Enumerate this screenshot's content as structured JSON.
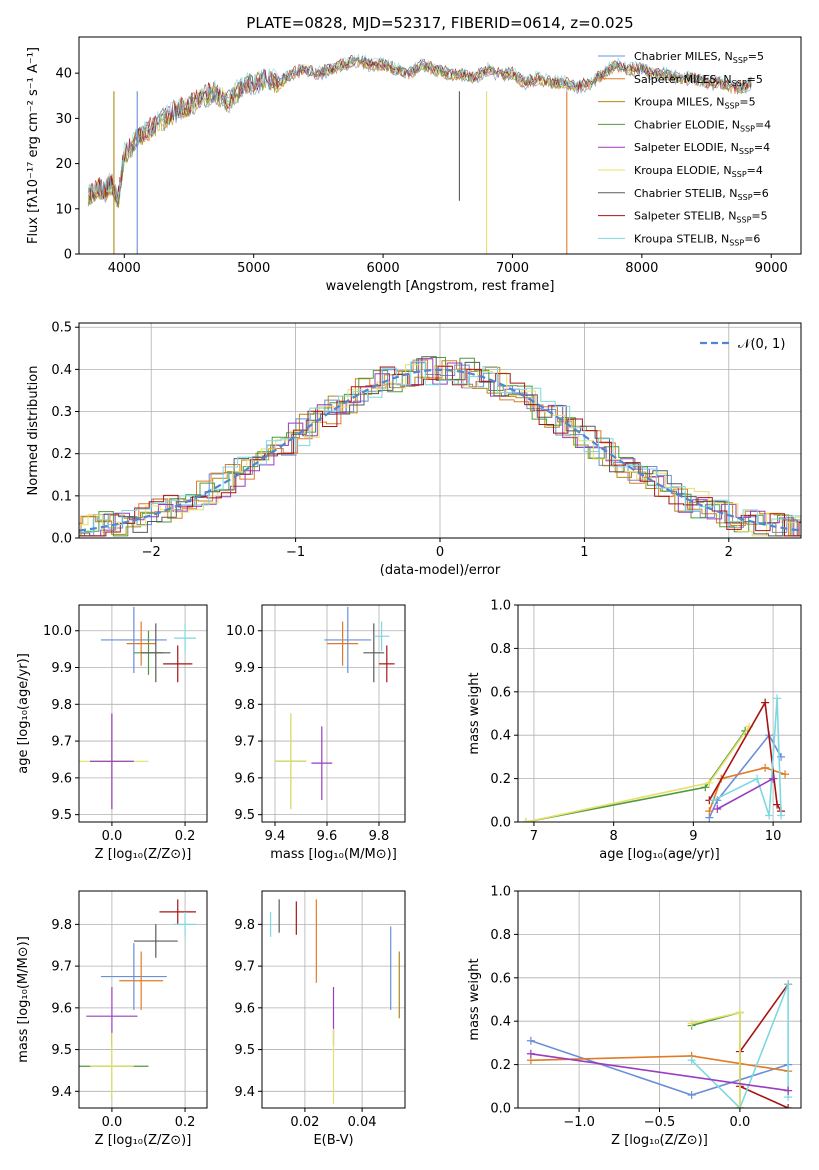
{
  "title": "PLATE=0828, MJD=52317, FIBERID=0614, z=0.025",
  "colors": [
    "#6a8fd8",
    "#e07c27",
    "#b08a1a",
    "#4f9a3c",
    "#9a3bc0",
    "#e6e06a",
    "#5a5a5a",
    "#a81414",
    "#7fd8e0"
  ],
  "models": [
    {
      "name": "Chabrier MILES, N",
      "sub": "SSP",
      "nssp": "=5",
      "color": "#6a8fd8"
    },
    {
      "name": "Salpeter MILES, N",
      "sub": "SSP",
      "nssp": "=5",
      "color": "#e07c27"
    },
    {
      "name": "Kroupa MILES, N",
      "sub": "SSP",
      "nssp": "=5",
      "color": "#b08a1a"
    },
    {
      "name": "Chabrier ELODIE, N",
      "sub": "SSP",
      "nssp": "=4",
      "color": "#4f9a3c"
    },
    {
      "name": "Salpeter ELODIE, N",
      "sub": "SSP",
      "nssp": "=4",
      "color": "#9a3bc0"
    },
    {
      "name": "Kroupa ELODIE, N",
      "sub": "SSP",
      "nssp": "=4",
      "color": "#e6e06a"
    },
    {
      "name": "Chabrier STELIB, N",
      "sub": "SSP",
      "nssp": "=6",
      "color": "#5a5a5a"
    },
    {
      "name": "Salpeter STELIB, N",
      "sub": "SSP",
      "nssp": "=5",
      "color": "#a81414"
    },
    {
      "name": "Kroupa STELIB, N",
      "sub": "SSP",
      "nssp": "=6",
      "color": "#7fd8e0"
    }
  ],
  "chart_data": [
    {
      "id": "spectrum",
      "type": "line",
      "xlabel": "wavelength [Angstrom, rest frame]",
      "ylabel": "Flux [fλ10⁻¹⁷ erg cm⁻² s⁻¹ A⁻¹]",
      "xlim": [
        3650,
        9230
      ],
      "ylim": [
        0,
        48
      ],
      "xticks": [
        4000,
        5000,
        6000,
        7000,
        8000,
        9000
      ],
      "yticks": [
        0,
        10,
        20,
        30,
        40
      ],
      "x": [
        3720,
        3800,
        3850,
        3900,
        3950,
        4000,
        4100,
        4200,
        4300,
        4400,
        4500,
        4600,
        4700,
        4800,
        4900,
        5000,
        5100,
        5200,
        5300,
        5400,
        5500,
        5600,
        5700,
        5800,
        5900,
        6000,
        6100,
        6200,
        6300,
        6400,
        6500,
        6600,
        6700,
        6800,
        6900,
        7000,
        7100,
        7200,
        7300,
        7400,
        7500,
        7600,
        7700,
        7800,
        7900,
        8000,
        8100,
        8200,
        8300,
        8400,
        8500,
        8600,
        8700,
        8800,
        8850
      ],
      "y": [
        13,
        15,
        14,
        16,
        12,
        22,
        26,
        28,
        30,
        32,
        33,
        35,
        36,
        34,
        37,
        38,
        39,
        38,
        40,
        41,
        40,
        41,
        42,
        43,
        42,
        42,
        41,
        40,
        42,
        41,
        40,
        40,
        39,
        41,
        40,
        40,
        38,
        39,
        38,
        38,
        37,
        38,
        40,
        42,
        41,
        41,
        40,
        40,
        39,
        39,
        38,
        38,
        37,
        37,
        38
      ],
      "dips": [
        {
          "x": 4100,
          "y": 0,
          "series": 0
        },
        {
          "x": 3920,
          "y": 0,
          "series": 2
        },
        {
          "x": 6800,
          "y": 0,
          "series": 5
        },
        {
          "x": 7420,
          "y": 0,
          "series": 1
        },
        {
          "x": 6590,
          "y": 12,
          "series": 6
        }
      ]
    },
    {
      "id": "histogram",
      "type": "bar",
      "xlabel": "(data-model)/error",
      "ylabel": "Normed distribution",
      "xlim": [
        -2.5,
        2.5
      ],
      "ylim": [
        0,
        0.51
      ],
      "xticks": [
        -2,
        -1,
        0,
        1,
        2
      ],
      "yticks": [
        0.0,
        0.1,
        0.2,
        0.3,
        0.4,
        0.5
      ],
      "legend": "𝒩(0, 1)",
      "gaussian": {
        "mu": 0,
        "sigma": 1
      }
    },
    {
      "id": "z-age",
      "type": "scatter",
      "xlabel": "Z [log₁₀(Z/Z⊙)]",
      "ylabel": "age  [log₁₀(age/yr)]",
      "xlim": [
        -0.09,
        0.26
      ],
      "ylim": [
        9.48,
        10.07
      ],
      "xticks": [
        0.0,
        0.2
      ],
      "yticks": [
        9.5,
        9.6,
        9.7,
        9.8,
        9.9,
        10.0
      ],
      "points": [
        {
          "x": 0.06,
          "y": 9.975,
          "xerr": 0.09,
          "yerr": 0.09,
          "series": 0
        },
        {
          "x": 0.08,
          "y": 9.965,
          "xerr": 0.04,
          "yerr": 0.06,
          "series": 1
        },
        {
          "x": 0.1,
          "y": 9.94,
          "xerr": 0.04,
          "yerr": 0.06,
          "series": 3
        },
        {
          "x": 0.18,
          "y": 9.91,
          "xerr": 0.04,
          "yerr": 0.05,
          "series": 7
        },
        {
          "x": 0.12,
          "y": 9.94,
          "xerr": 0.04,
          "yerr": 0.08,
          "series": 6
        },
        {
          "x": 0.2,
          "y": 9.98,
          "xerr": 0.03,
          "yerr": 0.04,
          "series": 8
        },
        {
          "x": 0.0,
          "y": 9.645,
          "xerr": 0.06,
          "yerr": 0.13,
          "series": 3
        },
        {
          "x": 0.0,
          "y": 9.645,
          "xerr": 0.1,
          "yerr": 0.13,
          "series": 5
        },
        {
          "x": 0.0,
          "y": 9.645,
          "xerr": 0.06,
          "yerr": 0.13,
          "series": 4
        }
      ]
    },
    {
      "id": "mass-age",
      "type": "scatter",
      "xlabel": "mass [log₁₀(M/M⊙)]",
      "ylabel": "",
      "xlim": [
        9.35,
        9.9
      ],
      "ylim": [
        9.48,
        10.07
      ],
      "xticks": [
        9.4,
        9.6,
        9.8
      ],
      "yticks": [
        9.5,
        9.6,
        9.7,
        9.8,
        9.9,
        10.0
      ],
      "points": [
        {
          "x": 9.68,
          "y": 9.975,
          "xerr": 0.09,
          "yerr": 0.09,
          "series": 0
        },
        {
          "x": 9.66,
          "y": 9.965,
          "xerr": 0.06,
          "yerr": 0.06,
          "series": 1
        },
        {
          "x": 9.78,
          "y": 9.94,
          "xerr": 0.04,
          "yerr": 0.08,
          "series": 6
        },
        {
          "x": 9.83,
          "y": 9.91,
          "xerr": 0.03,
          "yerr": 0.05,
          "series": 7
        },
        {
          "x": 9.81,
          "y": 9.985,
          "xerr": 0.03,
          "yerr": 0.04,
          "series": 8
        },
        {
          "x": 9.46,
          "y": 9.645,
          "xerr": 0.06,
          "yerr": 0.13,
          "series": 3
        },
        {
          "x": 9.46,
          "y": 9.645,
          "xerr": 0.06,
          "yerr": 0.13,
          "series": 5
        },
        {
          "x": 9.58,
          "y": 9.64,
          "xerr": 0.04,
          "yerr": 0.1,
          "series": 4
        }
      ]
    },
    {
      "id": "age-weight",
      "type": "line",
      "xlabel": "age  [log₁₀(age/yr)]",
      "ylabel": "mass weight",
      "xlim": [
        6.8,
        10.35
      ],
      "ylim": [
        0,
        1
      ],
      "xticks": [
        7,
        8,
        9,
        10
      ],
      "yticks": [
        0.0,
        0.2,
        0.4,
        0.6,
        0.8,
        1.0
      ],
      "series": [
        {
          "s": 0,
          "x": [
            9.2,
            9.3,
            9.95,
            10.1
          ],
          "y": [
            0.02,
            0.1,
            0.4,
            0.3
          ]
        },
        {
          "s": 1,
          "x": [
            9.2,
            9.35,
            9.9,
            10.15
          ],
          "y": [
            0.05,
            0.2,
            0.25,
            0.22
          ]
        },
        {
          "s": 3,
          "x": [
            6.9,
            9.15,
            9.65
          ],
          "y": [
            0.0,
            0.16,
            0.42
          ]
        },
        {
          "s": 5,
          "x": [
            6.9,
            9.2,
            9.7
          ],
          "y": [
            0.0,
            0.18,
            0.44
          ]
        },
        {
          "s": 7,
          "x": [
            9.2,
            9.9,
            10.05,
            10.1
          ],
          "y": [
            0.1,
            0.55,
            0.08,
            0.05
          ]
        },
        {
          "s": 8,
          "x": [
            9.25,
            9.8,
            9.95,
            10.05,
            10.1
          ],
          "y": [
            0.1,
            0.2,
            0.03,
            0.57,
            0.03
          ]
        },
        {
          "s": 4,
          "x": [
            9.3,
            10.0
          ],
          "y": [
            0.06,
            0.2
          ]
        }
      ]
    },
    {
      "id": "z-mass",
      "type": "scatter",
      "xlabel": "Z [log₁₀(Z/Z⊙)]",
      "ylabel": "mass [log₁₀(M/M⊙)]",
      "xlim": [
        -0.09,
        0.26
      ],
      "ylim": [
        9.36,
        9.88
      ],
      "xticks": [
        0.0,
        0.2
      ],
      "yticks": [
        9.4,
        9.5,
        9.6,
        9.7,
        9.8
      ],
      "points": [
        {
          "x": 0.18,
          "y": 9.83,
          "xerr": 0.05,
          "yerr": 0.03,
          "series": 7
        },
        {
          "x": 0.2,
          "y": 9.8,
          "xerr": 0.03,
          "yerr": 0.03,
          "series": 8
        },
        {
          "x": 0.12,
          "y": 9.76,
          "xerr": 0.06,
          "yerr": 0.04,
          "series": 6
        },
        {
          "x": 0.06,
          "y": 9.675,
          "xerr": 0.09,
          "yerr": 0.08,
          "series": 0
        },
        {
          "x": 0.08,
          "y": 9.665,
          "xerr": 0.06,
          "yerr": 0.07,
          "series": 1
        },
        {
          "x": 0.0,
          "y": 9.58,
          "xerr": 0.07,
          "yerr": 0.07,
          "series": 4
        },
        {
          "x": 0.0,
          "y": 9.46,
          "xerr": 0.1,
          "yerr": 0.08,
          "series": 3
        },
        {
          "x": 0.0,
          "y": 9.46,
          "xerr": 0.06,
          "yerr": 0.08,
          "series": 5
        }
      ]
    },
    {
      "id": "ebv-mass",
      "type": "scatter",
      "xlabel": "E(B-V)",
      "ylabel": "",
      "xlim": [
        0.005,
        0.055
      ],
      "ylim": [
        9.36,
        9.88
      ],
      "xticks": [
        0.02,
        0.04
      ],
      "yticks": [
        9.4,
        9.5,
        9.6,
        9.7,
        9.8
      ],
      "points": [
        {
          "x": 0.008,
          "y": 9.8,
          "yerr": 0.03,
          "series": 8
        },
        {
          "x": 0.011,
          "y": 9.82,
          "yerr": 0.04,
          "series": 6
        },
        {
          "x": 0.017,
          "y": 9.815,
          "yerr": 0.04,
          "series": 7
        },
        {
          "x": 0.024,
          "y": 9.76,
          "yerr": 0.1,
          "series": 1
        },
        {
          "x": 0.03,
          "y": 9.58,
          "yerr": 0.07,
          "series": 4
        },
        {
          "x": 0.03,
          "y": 9.46,
          "yerr": 0.09,
          "series": 5
        },
        {
          "x": 0.05,
          "y": 9.695,
          "yerr": 0.1,
          "series": 0
        },
        {
          "x": 0.053,
          "y": 9.655,
          "yerr": 0.08,
          "series": 2
        }
      ]
    },
    {
      "id": "z-weight",
      "type": "line",
      "xlabel": "Z [log₁₀(Z/Z⊙)]",
      "ylabel": "mass weight",
      "xlim": [
        -1.38,
        0.38
      ],
      "ylim": [
        0,
        1
      ],
      "xticks": [
        -1.0,
        -0.5,
        0.0
      ],
      "yticks": [
        0.0,
        0.2,
        0.4,
        0.6,
        0.8,
        1.0
      ],
      "series": [
        {
          "s": 0,
          "x": [
            -1.3,
            -0.3,
            0.3
          ],
          "y": [
            0.31,
            0.06,
            0.2
          ]
        },
        {
          "s": 1,
          "x": [
            -1.3,
            -0.3,
            0.3
          ],
          "y": [
            0.22,
            0.24,
            0.17
          ]
        },
        {
          "s": 7,
          "x": [
            0.3,
            0.0,
            0.0,
            0.3
          ],
          "y": [
            0.57,
            0.26,
            0.1,
            0.0
          ]
        },
        {
          "s": 8,
          "x": [
            -0.3,
            0.0,
            0.3,
            0.3
          ],
          "y": [
            0.22,
            0.0,
            0.57,
            0.05
          ]
        },
        {
          "s": 3,
          "x": [
            -0.3,
            0.0,
            0.0
          ],
          "y": [
            0.38,
            0.44,
            0.0
          ]
        },
        {
          "s": 5,
          "x": [
            -0.3,
            0.0,
            0.0
          ],
          "y": [
            0.39,
            0.44,
            0.0
          ]
        },
        {
          "s": 4,
          "x": [
            -1.3,
            0.3
          ],
          "y": [
            0.25,
            0.08
          ]
        }
      ]
    }
  ]
}
